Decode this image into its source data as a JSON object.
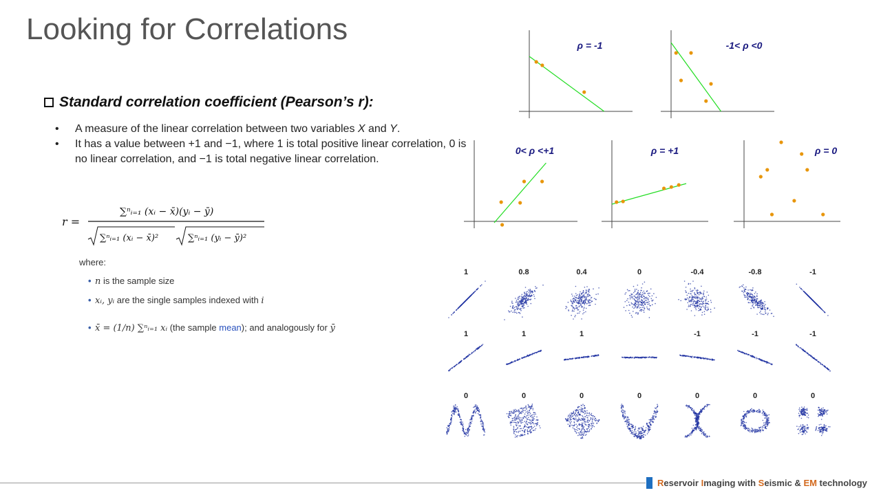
{
  "title": "Looking for Correlations",
  "section": {
    "heading": "Standard correlation coefficient (Pearson’s r):"
  },
  "bullets": [
    {
      "prefix": "A measure of the linear correlation between two variables ",
      "x": "X",
      "and": " and ",
      "y": "Y",
      "suffix": "."
    },
    {
      "text": "It has a value between +1 and −1, where 1 is total positive linear correlation, 0 is no linear correlation, and −1 is total negative linear correlation."
    }
  ],
  "formula": {
    "lhs": "r =",
    "numerator": "∑ⁿᵢ₌₁ (xᵢ − x̄)(yᵢ − ȳ)",
    "denominator_a": "∑ⁿᵢ₌₁ (xᵢ − x̄)²",
    "denominator_b": "∑ⁿᵢ₌₁ (yᵢ − ȳ)²"
  },
  "where_label": "where:",
  "definitions": [
    {
      "math": "n",
      "text": " is the sample size"
    },
    {
      "math": "xᵢ, yᵢ",
      "text": " are the single samples indexed with ",
      "math2": "i"
    },
    {
      "math": "x̄ = (1/n) ∑ⁿᵢ₌₁ xᵢ",
      "text": " (the sample ",
      "link": "mean",
      "text2": "); and analogously for ",
      "math2": "ȳ"
    }
  ],
  "example_plots": [
    {
      "label": "ρ = -1",
      "points": [
        [
          0.07,
          0.72
        ],
        [
          0.13,
          0.67
        ],
        [
          0.55,
          0.28
        ]
      ],
      "line": [
        [
          0.0,
          0.8
        ],
        [
          0.75,
          0.0
        ]
      ],
      "colors": {
        "dot": "#e8960c",
        "line": "#22dd22"
      }
    },
    {
      "label": "-1< ρ <0",
      "points": [
        [
          0.05,
          0.85
        ],
        [
          0.2,
          0.85
        ],
        [
          0.1,
          0.45
        ],
        [
          0.4,
          0.4
        ],
        [
          0.35,
          0.15
        ]
      ],
      "line": [
        [
          0.0,
          1.0
        ],
        [
          0.5,
          0.0
        ]
      ]
    },
    {
      "label": "0< ρ <+1",
      "points": [
        [
          0.27,
          0.28
        ],
        [
          0.46,
          0.27
        ],
        [
          0.5,
          0.58
        ],
        [
          0.68,
          0.58
        ],
        [
          0.28,
          -0.05
        ]
      ],
      "line": [
        [
          0.2,
          -0.02
        ],
        [
          0.72,
          0.85
        ]
      ]
    },
    {
      "label": "ρ = +1",
      "points": [
        [
          0.05,
          0.28
        ],
        [
          0.12,
          0.29
        ],
        [
          0.56,
          0.48
        ],
        [
          0.64,
          0.5
        ],
        [
          0.72,
          0.53
        ]
      ],
      "line": [
        [
          0.0,
          0.25
        ],
        [
          0.8,
          0.55
        ]
      ]
    },
    {
      "label": "ρ = 0",
      "points": [
        [
          0.18,
          0.65
        ],
        [
          0.25,
          0.75
        ],
        [
          0.4,
          1.15
        ],
        [
          0.62,
          0.98
        ],
        [
          0.68,
          0.75
        ],
        [
          0.54,
          0.3
        ],
        [
          0.3,
          0.1
        ],
        [
          0.85,
          0.1
        ]
      ],
      "line": null
    }
  ],
  "scatter_grid": {
    "row1": {
      "labels": [
        "1",
        "0.8",
        "0.4",
        "0",
        "-0.4",
        "-0.8",
        "-1"
      ],
      "rho": [
        1,
        0.8,
        0.4,
        0,
        -0.4,
        -0.8,
        -1
      ]
    },
    "row2": {
      "labels": [
        "1",
        "1",
        "1",
        "",
        "-1",
        "-1",
        "-1"
      ],
      "slopes": [
        0.85,
        0.45,
        0.15,
        0,
        -0.15,
        -0.45,
        -0.85
      ]
    },
    "row3": {
      "labels": [
        "0",
        "0",
        "0",
        "0",
        "0",
        "0",
        "0"
      ],
      "shapes": [
        "wave",
        "rotated-square",
        "diamond",
        "parabola",
        "x-cross",
        "ring",
        "four-clusters"
      ]
    },
    "dot_color": "#1c2fa0"
  },
  "footer": {
    "parts": [
      {
        "t": "R",
        "accent": true
      },
      {
        "t": "eservoir ",
        "accent": false
      },
      {
        "t": "I",
        "accent": true
      },
      {
        "t": "maging with ",
        "accent": false
      },
      {
        "t": "S",
        "accent": true
      },
      {
        "t": "eismic & ",
        "accent": false
      },
      {
        "t": "EM",
        "accent": true
      },
      {
        "t": " technology",
        "accent": false
      }
    ],
    "mark_color": "#1f6fc0"
  }
}
